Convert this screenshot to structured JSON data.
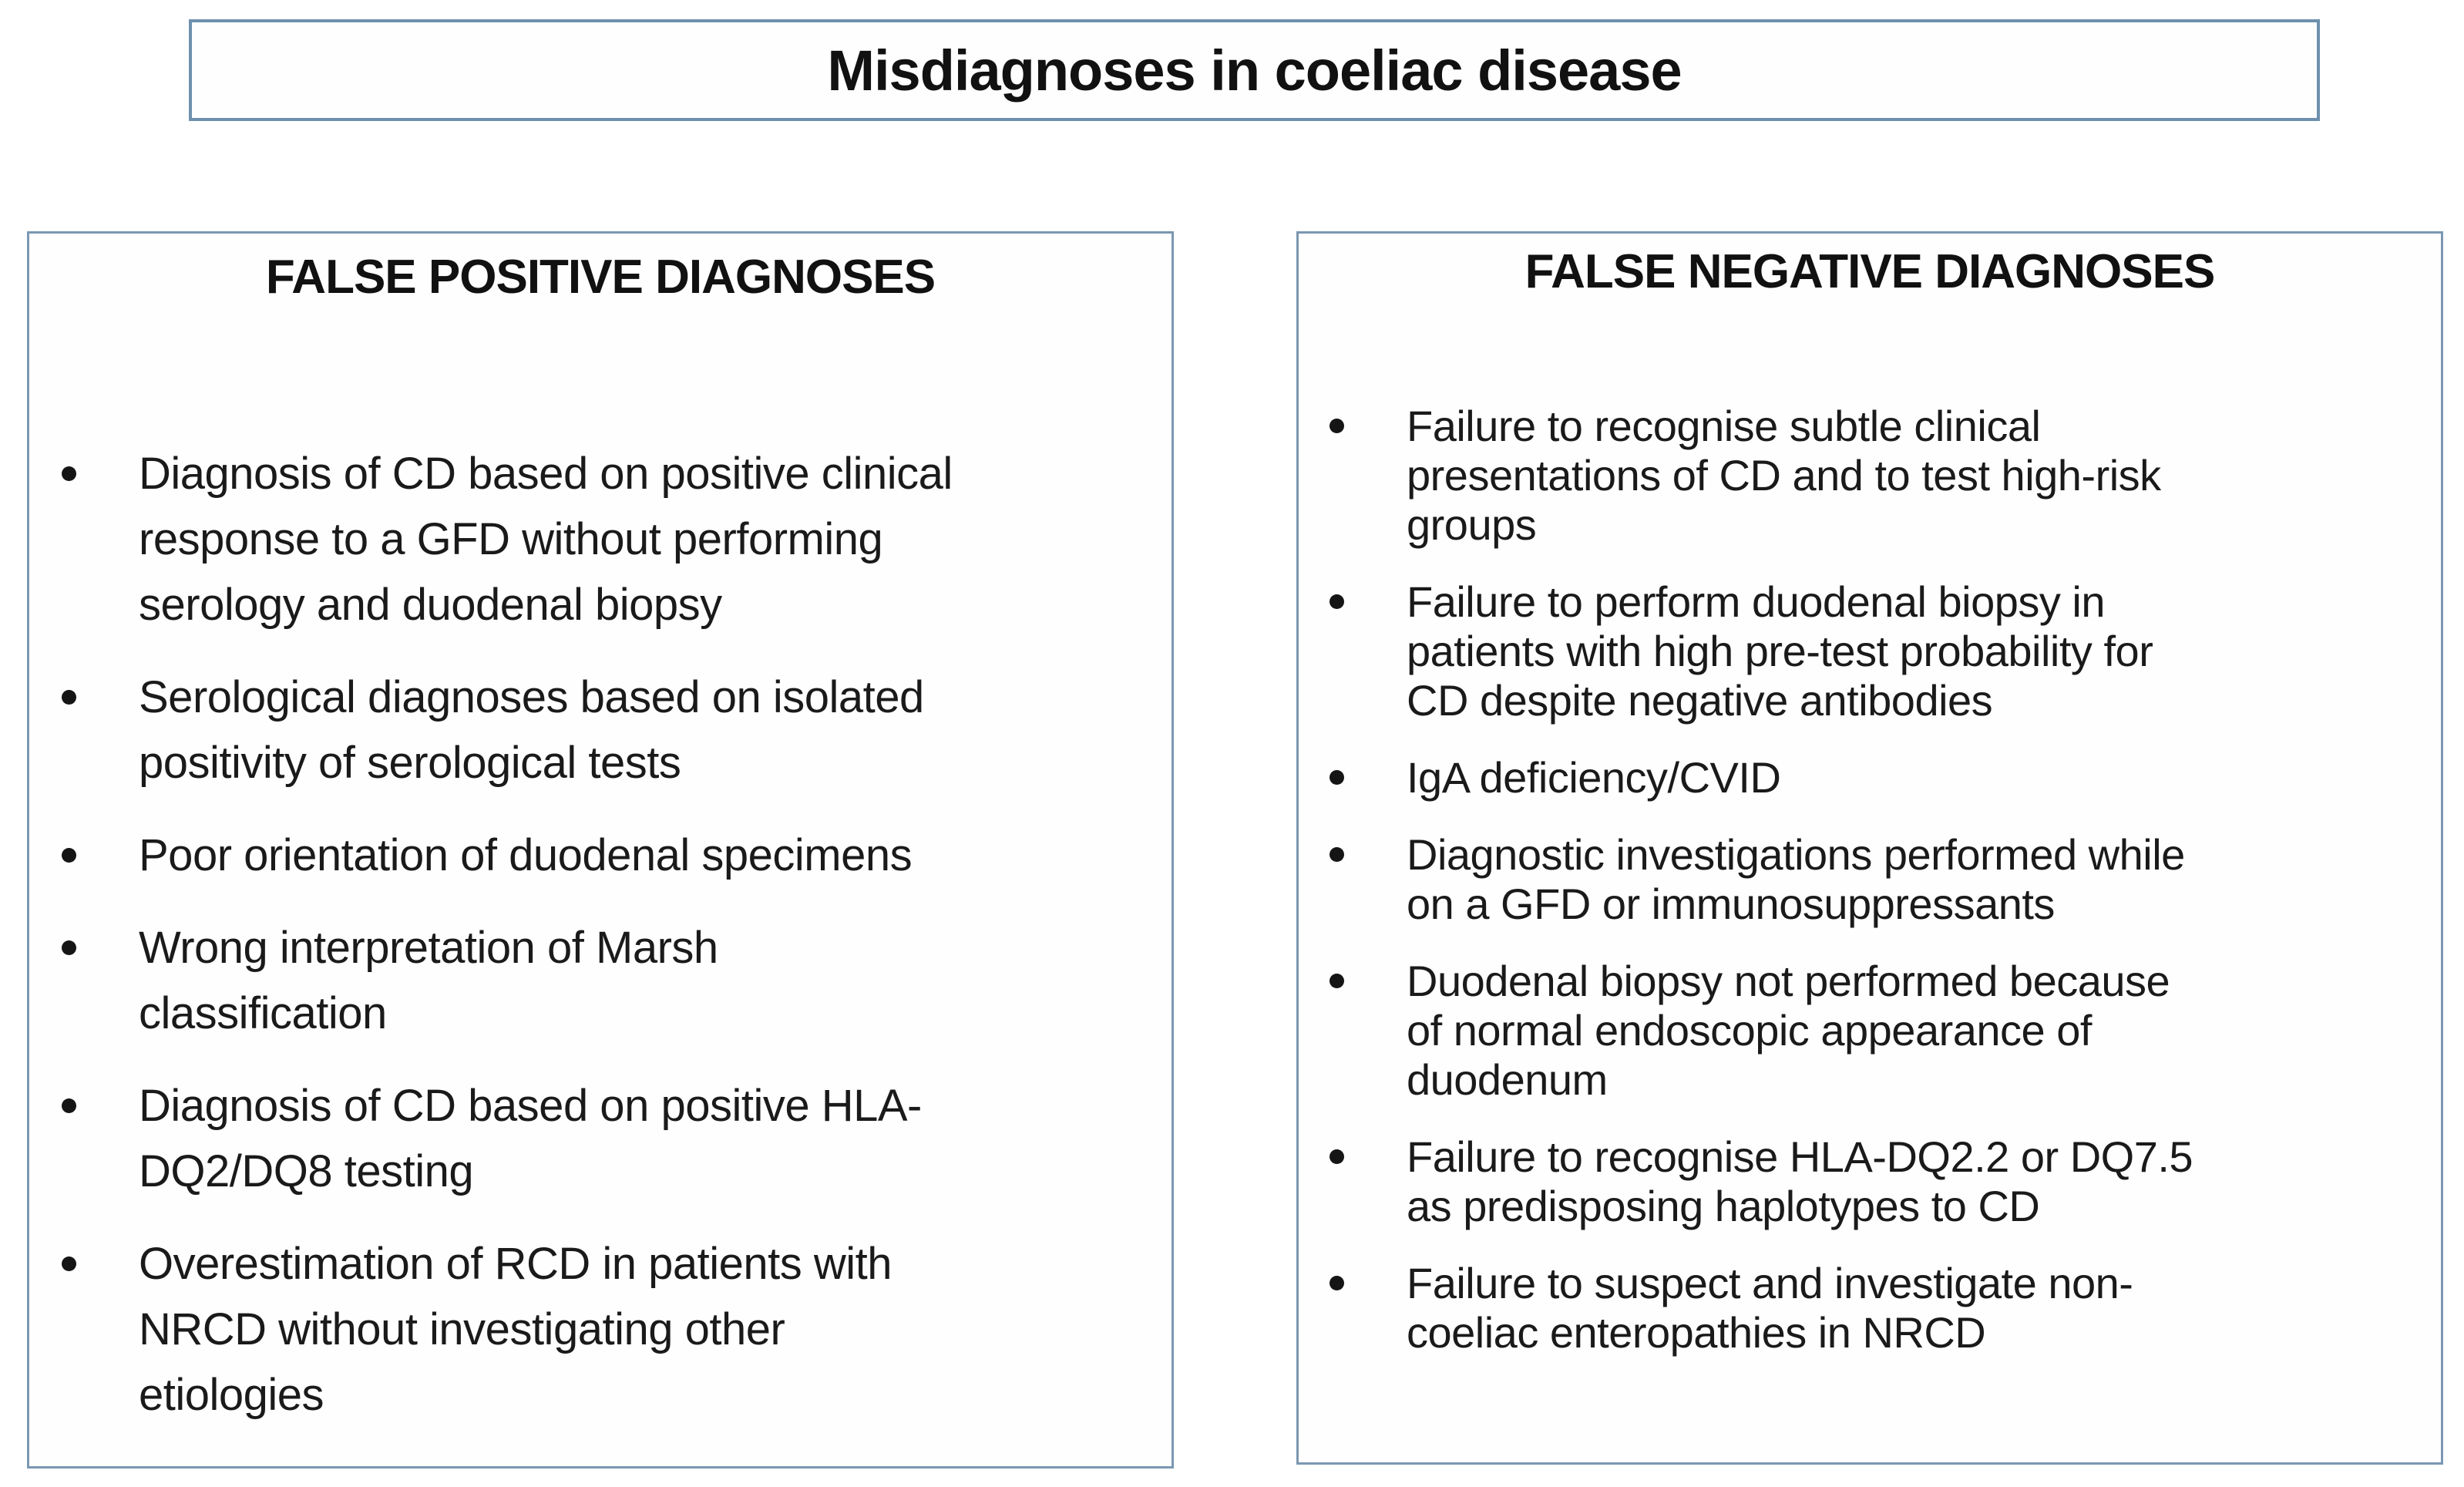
{
  "title": "Misdiagnoses in coeliac disease",
  "left_panel": {
    "heading": "FALSE POSITIVE DIAGNOSES",
    "items": [
      {
        "text": "Diagnosis of CD based on positive clinical\nresponse to a GFD without performing\nserology and duodenal biopsy"
      },
      {
        "text": "Serological diagnoses based on isolated\npositivity of serological tests"
      },
      {
        "text": "Poor orientation of duodenal specimens"
      },
      {
        "text": "Wrong interpretation of Marsh\nclassification"
      },
      {
        "text": "Diagnosis of CD based on positive HLA-\nDQ2/DQ8 testing"
      },
      {
        "text": "Overestimation of RCD in patients with\nNRCD without investigating other\netiologies"
      }
    ]
  },
  "right_panel": {
    "heading": "FALSE NEGATIVE DIAGNOSES",
    "items": [
      {
        "text": "Failure to recognise subtle clinical\npresentations of CD and to test high-risk\ngroups"
      },
      {
        "text": "Failure to perform duodenal biopsy in\npatients with high pre-test probability for\nCD despite negative antibodies"
      },
      {
        "text": "IgA deficiency/CVID"
      },
      {
        "text": "Diagnostic investigations performed while\non a GFD or immunosuppressants"
      },
      {
        "text": "Duodenal biopsy not performed because\nof normal endoscopic appearance of\nduodenum"
      },
      {
        "text": "Failure to recognise HLA-DQ2.2 or DQ7.5\nas predisposing haplotypes to CD"
      },
      {
        "text": "Failure to suspect and investigate non-\ncoeliac enteropathies in NRCD"
      }
    ]
  },
  "colors": {
    "panel_border": "#7b97b2",
    "title_border": "#6d90ad",
    "text": "#1a1a1a",
    "bullet_dot": "#151515",
    "background": "#ffffff"
  }
}
